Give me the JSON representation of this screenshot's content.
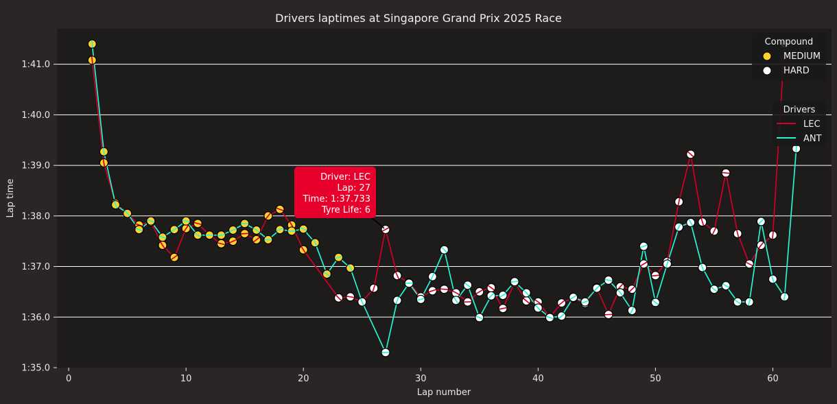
{
  "chart_data": {
    "type": "line",
    "title": "Drivers laptimes at Singapore Grand Prix 2025 Race",
    "xlabel": "Lap number",
    "ylabel": "Lap time",
    "xlim": [
      -1,
      65
    ],
    "ylim": [
      95,
      101.7
    ],
    "x_ticks": [
      0,
      10,
      20,
      30,
      40,
      50,
      60
    ],
    "y_ticks": [
      95,
      96,
      97,
      98,
      99,
      100,
      101
    ],
    "y_tick_labels": [
      "1:35.0",
      "1:36.0",
      "1:37.0",
      "1:38.0",
      "1:39.0",
      "1:40.0",
      "1:41.0"
    ],
    "grid": "horizontal",
    "compound_colors": {
      "MEDIUM": "#ffd12e",
      "HARD": "#ffffff"
    },
    "series": [
      {
        "name": "LEC",
        "color": "#d10024",
        "laps": [
          2,
          3,
          4,
          5,
          6,
          7,
          8,
          9,
          10,
          11,
          12,
          13,
          14,
          15,
          16,
          17,
          18,
          19,
          20,
          23,
          24,
          25,
          26,
          27,
          28,
          29,
          30,
          31,
          32,
          33,
          34,
          35,
          36,
          37,
          38,
          39,
          40,
          41,
          42,
          43,
          44,
          45,
          46,
          47,
          48,
          49,
          50,
          51,
          52,
          53,
          54,
          55,
          56,
          57,
          58,
          59,
          60,
          61
        ],
        "times": [
          101.08,
          99.05,
          98.25,
          98.05,
          97.82,
          97.88,
          97.42,
          97.18,
          97.75,
          97.85,
          97.62,
          97.45,
          97.5,
          97.65,
          97.53,
          98.0,
          98.13,
          97.82,
          97.33,
          96.38,
          96.4,
          96.3,
          96.57,
          97.733,
          96.82,
          96.68,
          96.4,
          96.52,
          96.55,
          96.48,
          96.3,
          96.5,
          96.58,
          96.17,
          96.68,
          96.32,
          96.3,
          96.0,
          96.28,
          96.38,
          96.27,
          96.58,
          96.05,
          96.6,
          96.55,
          97.05,
          96.82,
          97.1,
          98.28,
          99.22,
          97.88,
          97.7,
          98.85,
          97.65,
          97.05,
          97.42,
          97.62,
          101.4
        ],
        "compounds": [
          "MEDIUM",
          "MEDIUM",
          "MEDIUM",
          "MEDIUM",
          "MEDIUM",
          "MEDIUM",
          "MEDIUM",
          "MEDIUM",
          "MEDIUM",
          "MEDIUM",
          "MEDIUM",
          "MEDIUM",
          "MEDIUM",
          "MEDIUM",
          "MEDIUM",
          "MEDIUM",
          "MEDIUM",
          "MEDIUM",
          "MEDIUM",
          "HARD",
          "HARD",
          "HARD",
          "HARD",
          "HARD",
          "HARD",
          "HARD",
          "HARD",
          "HARD",
          "HARD",
          "HARD",
          "HARD",
          "HARD",
          "HARD",
          "HARD",
          "HARD",
          "HARD",
          "HARD",
          "HARD",
          "HARD",
          "HARD",
          "HARD",
          "HARD",
          "HARD",
          "HARD",
          "HARD",
          "HARD",
          "HARD",
          "HARD",
          "HARD",
          "HARD",
          "HARD",
          "HARD",
          "HARD",
          "HARD",
          "HARD",
          "HARD",
          "HARD",
          "HARD"
        ]
      },
      {
        "name": "ANT",
        "color": "#27f4d2",
        "laps": [
          2,
          3,
          4,
          5,
          6,
          7,
          8,
          9,
          10,
          11,
          12,
          13,
          14,
          15,
          16,
          17,
          18,
          19,
          20,
          21,
          22,
          23,
          24,
          25,
          27,
          28,
          29,
          30,
          31,
          32,
          33,
          34,
          35,
          36,
          37,
          38,
          39,
          40,
          41,
          42,
          43,
          44,
          45,
          46,
          47,
          48,
          49,
          50,
          51,
          52,
          53,
          54,
          55,
          56,
          57,
          58,
          59,
          60,
          61,
          62
        ],
        "times": [
          101.4,
          99.27,
          98.22,
          98.05,
          97.73,
          97.9,
          97.58,
          97.73,
          97.9,
          97.62,
          97.62,
          97.62,
          97.72,
          97.85,
          97.72,
          97.53,
          97.73,
          97.7,
          97.74,
          97.47,
          96.85,
          97.18,
          96.97,
          96.3,
          95.3,
          96.33,
          96.67,
          96.35,
          96.8,
          97.33,
          96.33,
          96.63,
          95.99,
          96.42,
          96.43,
          96.7,
          96.48,
          96.18,
          95.99,
          96.02,
          96.39,
          96.3,
          96.57,
          96.73,
          96.48,
          96.13,
          97.4,
          96.29,
          97.05,
          97.78,
          97.87,
          96.98,
          96.55,
          96.62,
          96.3,
          96.3,
          97.89,
          96.75,
          96.4,
          99.33
        ],
        "compounds": [
          "MEDIUM",
          "MEDIUM",
          "MEDIUM",
          "MEDIUM",
          "MEDIUM",
          "MEDIUM",
          "MEDIUM",
          "MEDIUM",
          "MEDIUM",
          "MEDIUM",
          "MEDIUM",
          "MEDIUM",
          "MEDIUM",
          "MEDIUM",
          "MEDIUM",
          "MEDIUM",
          "MEDIUM",
          "MEDIUM",
          "MEDIUM",
          "MEDIUM",
          "MEDIUM",
          "MEDIUM",
          "MEDIUM",
          "HARD",
          "HARD",
          "HARD",
          "HARD",
          "HARD",
          "HARD",
          "HARD",
          "HARD",
          "HARD",
          "HARD",
          "HARD",
          "HARD",
          "HARD",
          "HARD",
          "HARD",
          "HARD",
          "HARD",
          "HARD",
          "HARD",
          "HARD",
          "HARD",
          "HARD",
          "HARD",
          "HARD",
          "HARD",
          "HARD",
          "HARD",
          "HARD",
          "HARD",
          "HARD",
          "HARD",
          "HARD",
          "HARD",
          "HARD",
          "HARD",
          "HARD",
          "HARD"
        ]
      }
    ],
    "legend_compound": {
      "title": "Compound",
      "placement": "top-right",
      "items": [
        "MEDIUM",
        "HARD"
      ]
    },
    "legend_drivers": {
      "title": "Drivers",
      "placement": "right",
      "items": [
        "LEC",
        "ANT"
      ]
    },
    "tooltip": {
      "driver": "LEC",
      "lap": 27,
      "lines": [
        "Driver: LEC",
        "Lap: 27",
        "Time: 1:37.733",
        "Tyre Life: 6"
      ],
      "color": "#e8002d"
    }
  }
}
